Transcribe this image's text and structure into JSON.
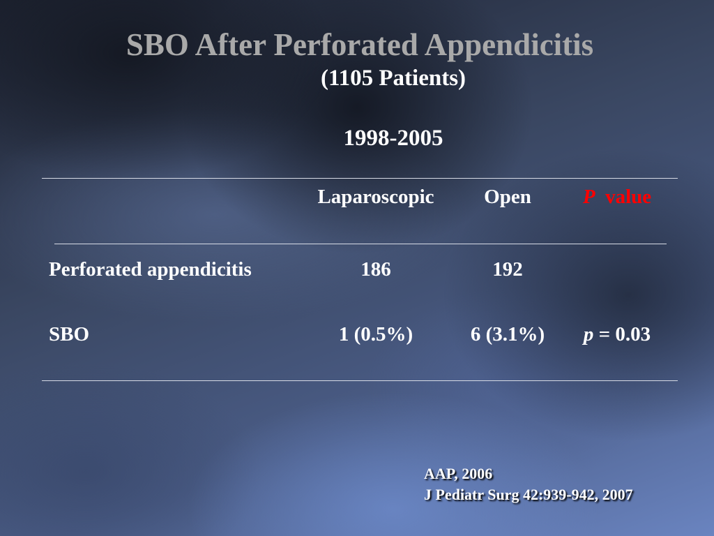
{
  "slide": {
    "title": "SBO After Perforated Appendicitis",
    "subtitle": "(1105 Patients)",
    "years": "1998-2005"
  },
  "table": {
    "headers": {
      "laparoscopic": "Laparoscopic",
      "open": "Open",
      "p_symbol": "P",
      "p_value": "value"
    },
    "rows": [
      {
        "label": "Perforated appendicitis",
        "laparoscopic": "186",
        "open": "192",
        "p_symbol": "",
        "p_text": ""
      },
      {
        "label": "SBO",
        "laparoscopic": "1 (0.5%)",
        "open": "6 (3.1%)",
        "p_symbol": "p",
        "p_text": " = 0.03"
      }
    ]
  },
  "citation": {
    "line1": "AAP, 2006",
    "line2": "J Pediatr Surg 42:939-942, 2007"
  },
  "colors": {
    "title": "#a9a9a9",
    "text": "#ffffff",
    "p_value_header": "#ff0000"
  }
}
